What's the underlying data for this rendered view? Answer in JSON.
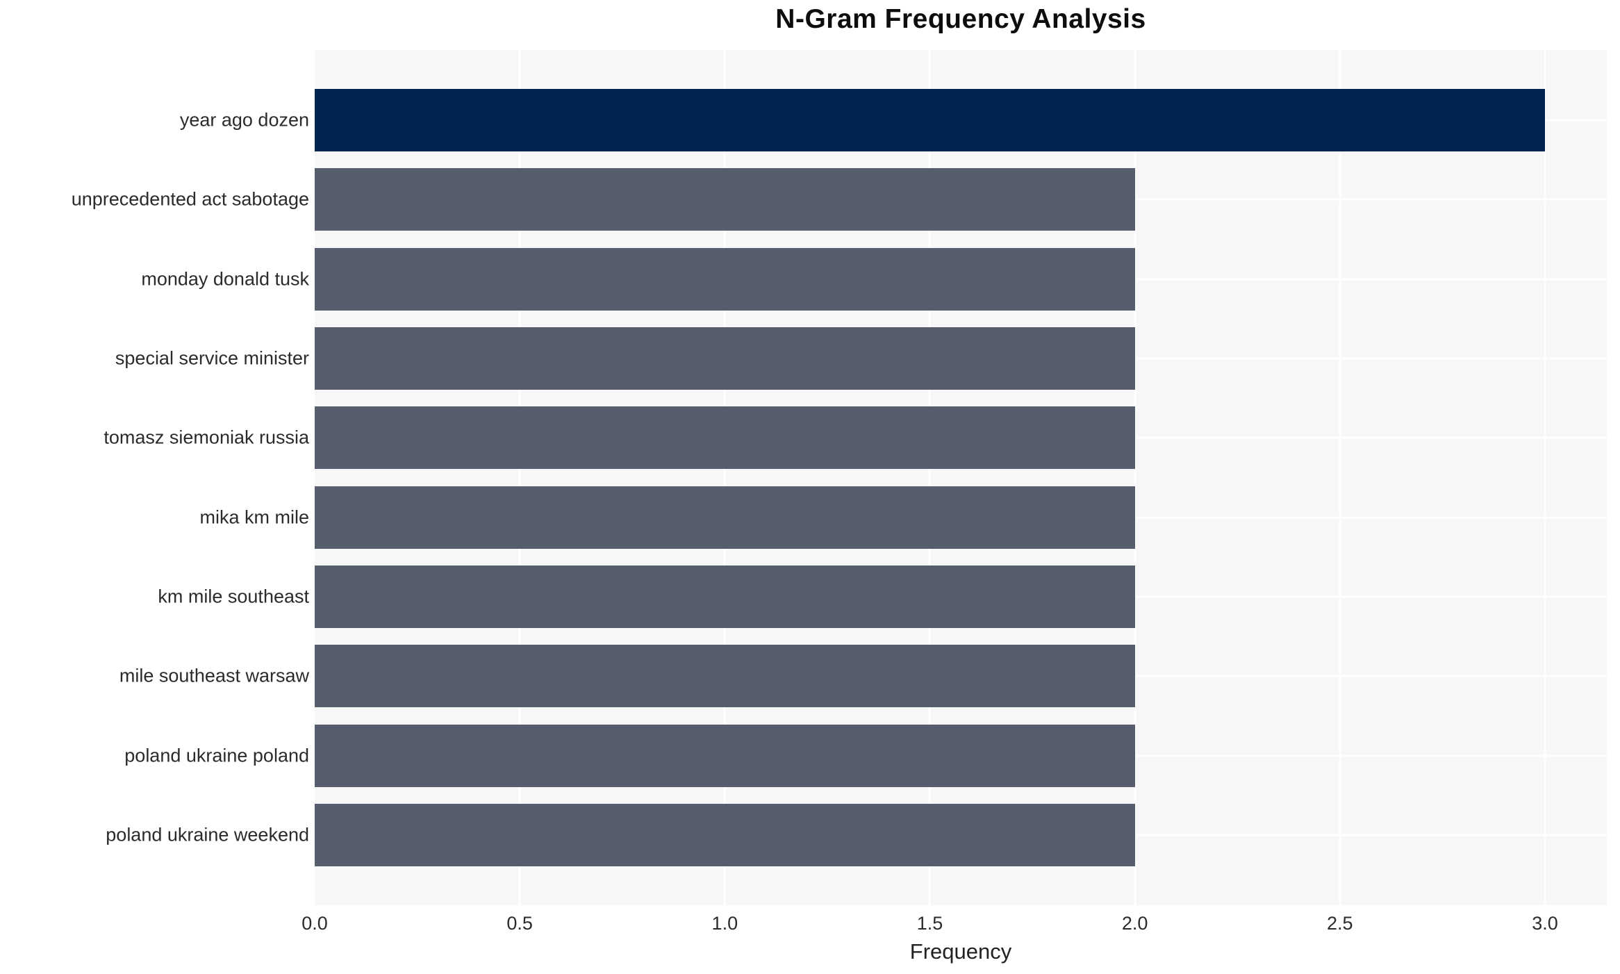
{
  "chart_data": {
    "type": "bar",
    "orientation": "horizontal",
    "title": "N-Gram Frequency Analysis",
    "xlabel": "Frequency",
    "ylabel": "",
    "categories": [
      "year ago dozen",
      "unprecedented act sabotage",
      "monday donald tusk",
      "special service minister",
      "tomasz siemoniak russia",
      "mika km mile",
      "km mile southeast",
      "mile southeast warsaw",
      "poland ukraine poland",
      "poland ukraine weekend"
    ],
    "values": [
      3,
      2,
      2,
      2,
      2,
      2,
      2,
      2,
      2,
      2
    ],
    "bar_colors": [
      "#01254f",
      "#565d6d",
      "#565d6d",
      "#565d6d",
      "#565d6d",
      "#565d6d",
      "#565d6d",
      "#565d6d",
      "#565d6d",
      "#565d6d"
    ],
    "xticks": [
      "0.0",
      "0.5",
      "1.0",
      "1.5",
      "2.0",
      "2.5",
      "3.0"
    ],
    "xlim": [
      0,
      3.15
    ],
    "grid": true,
    "legend": false,
    "colors": {
      "highlight_bar": "#01254f",
      "default_bar": "#565d6d",
      "plot_background": "#f7f7f8",
      "gridline": "#ffffff",
      "text": "#2b2b2b",
      "title_text": "#0d0d0d"
    }
  }
}
